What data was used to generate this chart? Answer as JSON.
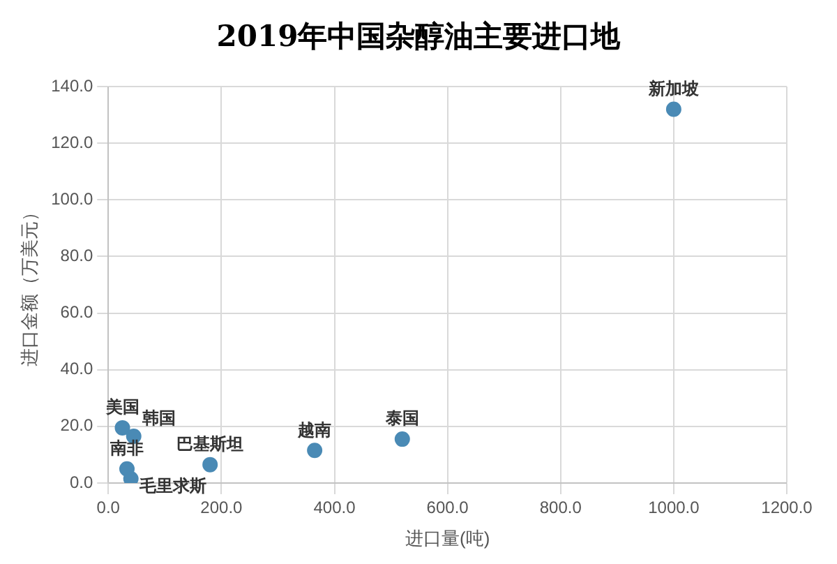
{
  "chart_data": {
    "type": "scatter",
    "title": "2019年中国杂醇油主要进口地",
    "xlabel": "进口量(吨)",
    "ylabel": "进口金额（万美元）",
    "x": [
      1000,
      520,
      365,
      180,
      25,
      45,
      33,
      40
    ],
    "values": [
      132,
      15.5,
      11.5,
      6.5,
      19.5,
      16.5,
      5,
      1.5
    ],
    "color": "#4a8ab5",
    "marker": "circle",
    "grid": true,
    "legend": false,
    "xlim": [
      0,
      1200
    ],
    "xticks": [
      {
        "value": 0,
        "label": "0.0"
      },
      {
        "value": 200,
        "label": "200.0"
      },
      {
        "value": 400,
        "label": "400.0"
      },
      {
        "value": 600,
        "label": "600.0"
      },
      {
        "value": 800,
        "label": "800.0"
      },
      {
        "value": 1000,
        "label": "1000.0"
      },
      {
        "value": 1200,
        "label": "1200.0"
      }
    ],
    "ylim": [
      0,
      140
    ],
    "yticks": [
      {
        "value": 0,
        "label": "0.0"
      },
      {
        "value": 20,
        "label": "20.0"
      },
      {
        "value": 40,
        "label": "40.0"
      },
      {
        "value": 60,
        "label": "60.0"
      },
      {
        "value": 80,
        "label": "80.0"
      },
      {
        "value": 100,
        "label": "100.0"
      },
      {
        "value": 120,
        "label": "120.0"
      },
      {
        "value": 140,
        "label": "140.0"
      }
    ],
    "annotations": [
      {
        "text": "新加坡",
        "x": 1000,
        "y": 132
      },
      {
        "text": "泰国",
        "x": 520,
        "y": 15.5
      },
      {
        "text": "越南",
        "x": 365,
        "y": 11.5
      },
      {
        "text": "巴基斯坦",
        "x": 180,
        "y": 6.5
      },
      {
        "text": "美国",
        "x": 25,
        "y": 19.5
      },
      {
        "text": "韩国",
        "x": 45,
        "y": 16.5
      },
      {
        "text": "南非",
        "x": 33,
        "y": 5
      },
      {
        "text": "毛里求斯",
        "x": 40,
        "y": 1.5
      }
    ]
  }
}
